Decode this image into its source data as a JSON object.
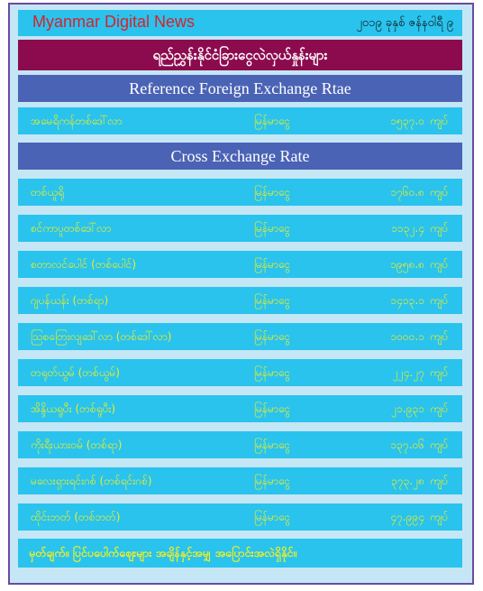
{
  "header": {
    "site_name": "Myanmar Digital News",
    "date": "၂၀၁၉ ခုနှစ် ဇန်နဝါရီ ၉"
  },
  "title": "ရည်ညွှန်းနိုင်ငံခြားငွေလဲလှယ်နှုန်းများ",
  "reference_section": {
    "label": "Reference Foreign Exchange Rtae",
    "row": {
      "currency": "အမေရိကန်တစ်ဒေါ်လာ",
      "unit": "မြန်မာငွေ",
      "value": "၁၅၃၇.၀",
      "kyat": "ကျပ်"
    }
  },
  "cross_section": {
    "label": "Cross Exchange Rate",
    "rows": [
      {
        "currency": "တစ်ယူရို",
        "unit": "မြန်မာငွေ",
        "value": "၁၇၆၀.၈",
        "kyat": "ကျပ်"
      },
      {
        "currency": "စင်ကာပူတစ်ဒေါ်လာ",
        "unit": "မြန်မာငွေ",
        "value": "၁၁၃၂.၄",
        "kyat": "ကျပ်"
      },
      {
        "currency": "စတာလင်ပေါင် (တစ်ပေါင်)",
        "unit": "မြန်မာငွေ",
        "value": "၁၉၅၈.၈",
        "kyat": "ကျပ်"
      },
      {
        "currency": "ဂျပန်ယန်း (တစ်ရာ)",
        "unit": "မြန်မာငွေ",
        "value": "၁၄၁၃.၁",
        "kyat": "ကျပ်"
      },
      {
        "currency": "ဩစတြေးလျဒေါ်လာ (တစ်ဒေါ်လာ)",
        "unit": "မြန်မာငွေ",
        "value": "၁၀၀၀.၁",
        "kyat": "ကျပ်"
      },
      {
        "currency": "တရုတ်ယွမ် (တစ်ယွမ်)",
        "unit": "မြန်မာငွေ",
        "value": "၂၂၄.၂၇",
        "kyat": "ကျပ်"
      },
      {
        "currency": "အိန္ဒိယရူပီး (တစ်ရူပီး)",
        "unit": "မြန်မာငွေ",
        "value": "၂၁.၉၃၁",
        "kyat": "ကျပ်"
      },
      {
        "currency": "ကိုးရီးယားဝမ် (တစ်ရာ)",
        "unit": "မြန်မာငွေ",
        "value": "၁၃၇.၀၆",
        "kyat": "ကျပ်"
      },
      {
        "currency": "မလေးရှားရင်းဂစ် (တစ်ရင်းဂစ်)",
        "unit": "မြန်မာငွေ",
        "value": "၃၇၃.၂၈",
        "kyat": "ကျပ်"
      },
      {
        "currency": "ထိုင်းဘတ် (တစ်ဘတ်)",
        "unit": "မြန်မာငွေ",
        "value": "၄၇.၉၉၄",
        "kyat": "ကျပ်"
      }
    ]
  },
  "footer_note": "မှတ်ချက်။ ပြင်ပပေါက်ဈေးများ အချိန်နှင့်အမျှ အပြောင်းအလဲရှိနိုင်။"
}
